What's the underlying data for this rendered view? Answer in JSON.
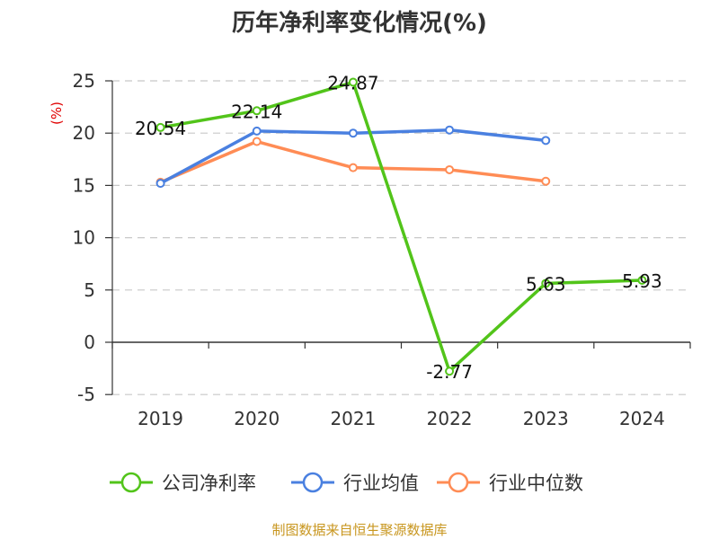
{
  "chart_data": {
    "type": "line",
    "title": "历年净利率变化情况(%)",
    "ylabel": "(%)",
    "xlabel": "",
    "categories": [
      "2019",
      "2020",
      "2021",
      "2022",
      "2023",
      "2024"
    ],
    "ylim": [
      -5,
      25
    ],
    "yticks": [
      -5,
      0,
      5,
      10,
      15,
      20,
      25
    ],
    "grid": true,
    "legend_position": "bottom",
    "series": [
      {
        "name": "公司净利率",
        "color": "#52c41a",
        "values": [
          20.54,
          22.14,
          24.87,
          -2.77,
          5.63,
          5.93
        ],
        "labels": [
          "20.54",
          "22.14",
          "24.87",
          "-2.77",
          "5.63",
          "5.93"
        ]
      },
      {
        "name": "行业均值",
        "color": "#4a80e0",
        "values": [
          15.2,
          20.2,
          20.0,
          20.3,
          19.3,
          null
        ]
      },
      {
        "name": "行业中位数",
        "color": "#ff8c55",
        "values": [
          15.3,
          19.2,
          16.7,
          16.5,
          15.4,
          null
        ]
      }
    ]
  },
  "source": "制图数据来自恒生聚源数据库"
}
